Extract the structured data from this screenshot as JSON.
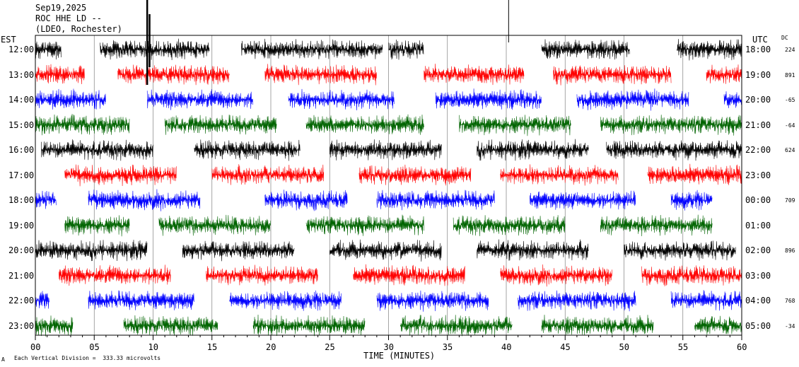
{
  "header": {
    "date": "Sep19,2025",
    "station": "ROC HHE LD --",
    "institution": "(LDEO, Rochester)"
  },
  "left_tz": "EST",
  "right_tz": "UTC",
  "dc_header": "DC",
  "footer": {
    "scale_text": "Each Vertical Division =  333.33 microvolts",
    "corner_mark": "A"
  },
  "colors": {
    "black": "#000000",
    "red": "#ff0000",
    "blue": "#0000ff",
    "green": "#006400",
    "grid": "#808080"
  },
  "chart_data": {
    "type": "helicorder",
    "xlabel": "TIME (MINUTES)",
    "x_ticks": [
      "00",
      "05",
      "10",
      "15",
      "20",
      "25",
      "30",
      "35",
      "40",
      "45",
      "50",
      "55",
      "60"
    ],
    "xlim": [
      0,
      60
    ],
    "rows": [
      {
        "est": "12:00",
        "utc": "18:00",
        "dc": "224",
        "color": "black",
        "segments": [
          [
            0,
            2.2
          ],
          [
            5.5,
            14.8
          ],
          [
            17.5,
            29.5
          ],
          [
            30,
            33
          ],
          [
            43,
            50.5
          ],
          [
            54.5,
            60
          ]
        ]
      },
      {
        "est": "13:00",
        "utc": "19:00",
        "dc": "891",
        "color": "red",
        "segments": [
          [
            0,
            4.2
          ],
          [
            7,
            16.5
          ],
          [
            19.5,
            29
          ],
          [
            33,
            41.5
          ],
          [
            44,
            54
          ],
          [
            57,
            60
          ]
        ]
      },
      {
        "est": "14:00",
        "utc": "20:00",
        "dc": "-65",
        "color": "blue",
        "segments": [
          [
            0,
            6
          ],
          [
            9.5,
            18.5
          ],
          [
            21.5,
            30.5
          ],
          [
            34,
            43
          ],
          [
            46,
            55.5
          ],
          [
            58.5,
            60
          ]
        ]
      },
      {
        "est": "15:00",
        "utc": "21:00",
        "dc": "-64",
        "color": "green",
        "segments": [
          [
            0,
            8
          ],
          [
            11,
            20.5
          ],
          [
            23,
            33
          ],
          [
            36,
            45.5
          ],
          [
            48,
            60
          ]
        ]
      },
      {
        "est": "16:00",
        "utc": "22:00",
        "dc": "624",
        "color": "black",
        "segments": [
          [
            0.5,
            10
          ],
          [
            13.5,
            22.5
          ],
          [
            25,
            34.5
          ],
          [
            37.5,
            47
          ],
          [
            48.5,
            60
          ]
        ]
      },
      {
        "est": "17:00",
        "utc": "23:00",
        "dc": "",
        "color": "red",
        "segments": [
          [
            2.5,
            12
          ],
          [
            15,
            24.5
          ],
          [
            27.5,
            37
          ],
          [
            39.5,
            49.5
          ],
          [
            52,
            60
          ]
        ]
      },
      {
        "est": "18:00",
        "utc": "00:00",
        "dc": "709",
        "color": "blue",
        "segments": [
          [
            0,
            1.8
          ],
          [
            4.5,
            14
          ],
          [
            19.5,
            26.5
          ],
          [
            29,
            39
          ],
          [
            42,
            51
          ],
          [
            54,
            57.5
          ]
        ]
      },
      {
        "est": "19:00",
        "utc": "01:00",
        "dc": "",
        "color": "green",
        "segments": [
          [
            2.5,
            8
          ],
          [
            10.5,
            20
          ],
          [
            23,
            33
          ],
          [
            35.5,
            45
          ],
          [
            48,
            57.5
          ]
        ]
      },
      {
        "est": "20:00",
        "utc": "02:00",
        "dc": "896",
        "color": "black",
        "segments": [
          [
            0,
            9.5
          ],
          [
            12.5,
            22
          ],
          [
            25,
            34.5
          ],
          [
            37.5,
            47
          ],
          [
            50,
            59.5
          ]
        ]
      },
      {
        "est": "21:00",
        "utc": "03:00",
        "dc": "",
        "color": "red",
        "segments": [
          [
            2,
            11.5
          ],
          [
            14.5,
            24
          ],
          [
            27,
            36.5
          ],
          [
            39.5,
            49
          ],
          [
            51.5,
            60
          ]
        ]
      },
      {
        "est": "22:00",
        "utc": "04:00",
        "dc": "768",
        "color": "blue",
        "segments": [
          [
            0,
            1.2
          ],
          [
            4.5,
            13.5
          ],
          [
            16.5,
            26
          ],
          [
            29,
            38.5
          ],
          [
            41,
            51
          ],
          [
            54,
            60
          ]
        ]
      },
      {
        "est": "23:00",
        "utc": "05:00",
        "dc": "-34",
        "color": "green",
        "segments": [
          [
            0,
            3.2
          ],
          [
            7.5,
            15.5
          ],
          [
            18.5,
            28
          ],
          [
            31,
            40.5
          ],
          [
            43,
            52.5
          ],
          [
            56,
            60
          ]
        ]
      }
    ]
  }
}
